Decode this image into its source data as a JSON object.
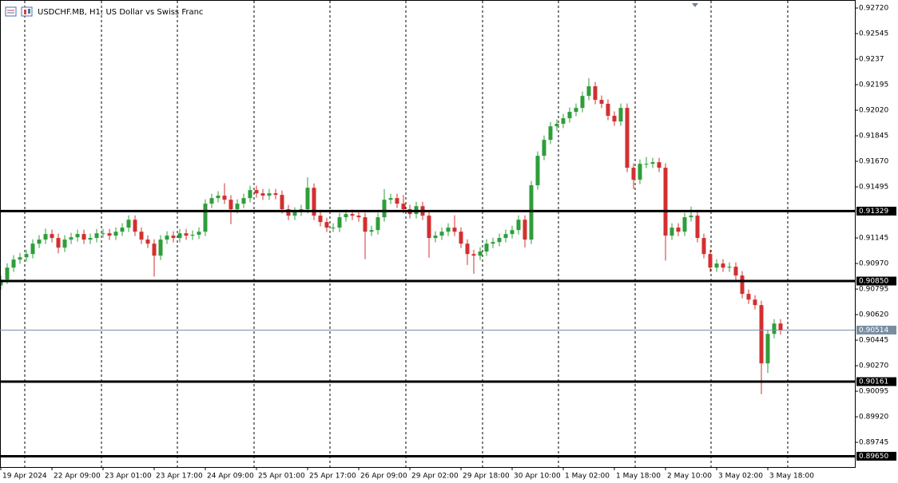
{
  "chart_data": {
    "type": "candlestick",
    "title": "USDCHF.MB, H1:  US Dollar vs Swiss Franc",
    "up_color": "#2e9e3a",
    "down_color": "#d32f2f",
    "xlim": [
      0,
      122
    ],
    "ylim": [
      0.89576,
      0.92775
    ],
    "xticks": [
      {
        "value": 0,
        "label": "19 Apr 2024"
      },
      {
        "value": 8,
        "label": "22 Apr 09:00"
      },
      {
        "value": 16,
        "label": "23 Apr 01:00"
      },
      {
        "value": 24,
        "label": "23 Apr 17:00"
      },
      {
        "value": 32,
        "label": "24 Apr 09:00"
      },
      {
        "value": 40,
        "label": "25 Apr 01:00"
      },
      {
        "value": 48,
        "label": "25 Apr 17:00"
      },
      {
        "value": 56,
        "label": "26 Apr 09:00"
      },
      {
        "value": 64,
        "label": "29 Apr 02:00"
      },
      {
        "value": 72,
        "label": "29 Apr 18:00"
      },
      {
        "value": 80,
        "label": "30 Apr 10:00"
      },
      {
        "value": 88,
        "label": "1 May 02:00"
      },
      {
        "value": 96,
        "label": "1 May 18:00"
      },
      {
        "value": 104,
        "label": "2 May 10:00"
      },
      {
        "value": 112,
        "label": "3 May 02:00"
      },
      {
        "value": 120,
        "label": "3 May 18:00"
      }
    ],
    "yticks": [
      {
        "value": 0.9272,
        "label": "0.92720"
      },
      0.92545,
      0.9237,
      0.92195,
      {
        "value": 0.9202,
        "label": "0.92020"
      },
      0.91845,
      {
        "value": 0.9167,
        "label": "0.91670"
      },
      0.91495,
      0.91145,
      {
        "value": 0.9097,
        "label": "0.90970"
      },
      0.90795,
      {
        "value": 0.9062,
        "label": "0.90620"
      },
      0.90445,
      {
        "value": 0.9027,
        "label": "0.90270"
      },
      0.90095,
      {
        "value": 0.8992,
        "label": "0.89920"
      },
      0.89745
    ],
    "levels": [
      0.91329,
      {
        "value": 0.9085,
        "label": "0.90850"
      },
      0.90161,
      {
        "value": 0.8965,
        "label": "0.89650"
      }
    ],
    "level_color": "#000000",
    "current_price": 0.90514,
    "current_color": "#7a8ea3",
    "open": [
      0.9082,
      0.9086,
      0.90942,
      0.90997,
      0.91013,
      0.91035,
      0.91106,
      0.91134,
      0.91172,
      0.91145,
      0.91079,
      0.91134,
      0.9115,
      0.91172,
      0.91134,
      0.91145,
      0.91177,
      0.91177,
      0.91161,
      0.91188,
      0.91216,
      0.9127,
      0.91188,
      0.91134,
      0.91106,
      0.91024,
      0.91134,
      0.91161,
      0.91145,
      0.91177,
      0.91161,
      0.91167,
      0.91188,
      0.9138,
      0.91418,
      0.91435,
      0.91407,
      0.91342,
      0.9138,
      0.91418,
      0.91473,
      0.91451,
      0.91435,
      0.91451,
      0.9144,
      0.91342,
      0.91298,
      0.91325,
      0.91342,
      0.91489,
      0.91298,
      0.91254,
      0.91216,
      0.91216,
      0.91287,
      0.91309,
      0.91298,
      0.91287,
      0.91188,
      0.91199,
      0.91287,
      0.91407,
      0.91418,
      0.9138,
      0.91342,
      0.91309,
      0.91363,
      0.91298,
      0.91145,
      0.91161,
      0.91188,
      0.91216,
      0.91188,
      0.91106,
      0.91035,
      0.91024,
      0.91052,
      0.91106,
      0.91117,
      0.91145,
      0.91172,
      0.91199,
      0.9127,
      0.91134,
      0.91506,
      0.91708,
      0.91817,
      0.9191,
      0.91927,
      0.91965,
      0.92009,
      0.92036,
      0.92118,
      0.92184,
      0.92091,
      0.92064,
      0.91982,
      0.91943,
      0.92036,
      0.91626,
      0.91544,
      0.91653,
      0.91653,
      0.91664,
      0.91626,
      0.91161,
      0.91216,
      0.91188,
      0.91287,
      0.91298,
      0.91145,
      0.91035,
      0.90942,
      0.9097,
      0.90942,
      0.90948,
      0.90888,
      0.90762,
      0.90723,
      0.90685,
      0.90286,
      0.90488,
      0.90559
    ],
    "high": [
      0.9089,
      0.90972,
      0.91027,
      0.91043,
      0.91065,
      0.91136,
      0.91164,
      0.9121,
      0.91202,
      0.91175,
      0.91164,
      0.9118,
      0.91202,
      0.91202,
      0.91175,
      0.91207,
      0.91207,
      0.91207,
      0.91218,
      0.91246,
      0.913,
      0.913,
      0.91218,
      0.91164,
      0.91136,
      0.91164,
      0.91191,
      0.91191,
      0.91207,
      0.91207,
      0.91197,
      0.91218,
      0.9141,
      0.91448,
      0.91465,
      0.9152,
      0.91437,
      0.9141,
      0.91448,
      0.91503,
      0.91503,
      0.91481,
      0.91481,
      0.91481,
      0.9147,
      0.91372,
      0.91355,
      0.91372,
      0.9156,
      0.91519,
      0.91328,
      0.91284,
      0.91246,
      0.91317,
      0.91339,
      0.91339,
      0.91328,
      0.91317,
      0.91229,
      0.91317,
      0.9148,
      0.91448,
      0.91448,
      0.9144,
      0.91372,
      0.91393,
      0.91393,
      0.91328,
      0.91191,
      0.91218,
      0.91246,
      0.913,
      0.91218,
      0.91136,
      0.91065,
      0.91082,
      0.91136,
      0.91147,
      0.91175,
      0.91202,
      0.91229,
      0.913,
      0.913,
      0.91536,
      0.91738,
      0.91847,
      0.9194,
      0.91957,
      0.91995,
      0.92039,
      0.92066,
      0.92148,
      0.9224,
      0.92214,
      0.92121,
      0.92094,
      0.92012,
      0.92066,
      0.92066,
      0.91656,
      0.91683,
      0.917,
      0.91694,
      0.91694,
      0.91656,
      0.91246,
      0.91246,
      0.91317,
      0.9136,
      0.91328,
      0.91175,
      0.91065,
      0.91,
      0.91,
      0.90978,
      0.90978,
      0.90918,
      0.90792,
      0.90753,
      0.90715,
      0.90518,
      0.90589,
      0.90589
    ],
    "low": [
      0.9079,
      0.9083,
      0.90912,
      0.90967,
      0.90983,
      0.91005,
      0.91076,
      0.91104,
      0.91115,
      0.9104,
      0.91049,
      0.91104,
      0.9112,
      0.91104,
      0.91104,
      0.91115,
      0.91147,
      0.91131,
      0.91131,
      0.91158,
      0.91186,
      0.91158,
      0.91104,
      0.91076,
      0.9088,
      0.90994,
      0.91104,
      0.91115,
      0.91115,
      0.91131,
      0.91131,
      0.91137,
      0.91158,
      0.9135,
      0.91388,
      0.91377,
      0.9124,
      0.91312,
      0.9135,
      0.91388,
      0.91421,
      0.91405,
      0.91405,
      0.9141,
      0.91312,
      0.91268,
      0.91268,
      0.91295,
      0.91312,
      0.91268,
      0.91224,
      0.91186,
      0.91186,
      0.91186,
      0.91257,
      0.91268,
      0.91257,
      0.91,
      0.91158,
      0.91169,
      0.91257,
      0.91377,
      0.9135,
      0.91312,
      0.91279,
      0.91279,
      0.91268,
      0.9101,
      0.91115,
      0.91131,
      0.91158,
      0.91158,
      0.91076,
      0.9096,
      0.909,
      0.90994,
      0.91022,
      0.91076,
      0.91087,
      0.91115,
      0.91142,
      0.91169,
      0.9108,
      0.91104,
      0.91476,
      0.91678,
      0.91787,
      0.9188,
      0.91897,
      0.91935,
      0.91979,
      0.92006,
      0.92088,
      0.92061,
      0.92034,
      0.91952,
      0.91913,
      0.91913,
      0.91596,
      0.9148,
      0.91514,
      0.91623,
      0.91623,
      0.91596,
      0.9099,
      0.91131,
      0.91158,
      0.91158,
      0.91257,
      0.91115,
      0.91005,
      0.90912,
      0.90912,
      0.90912,
      0.90912,
      0.90858,
      0.90732,
      0.90693,
      0.90655,
      0.90075,
      0.9022,
      0.90458,
      0.90484
    ],
    "close": [
      0.9086,
      0.90942,
      0.90997,
      0.91013,
      0.91035,
      0.91106,
      0.91134,
      0.91172,
      0.91145,
      0.91079,
      0.91134,
      0.9115,
      0.91172,
      0.91134,
      0.91145,
      0.91177,
      0.91177,
      0.91161,
      0.91188,
      0.91216,
      0.9127,
      0.91188,
      0.91134,
      0.91106,
      0.91024,
      0.91134,
      0.91161,
      0.91145,
      0.91177,
      0.91161,
      0.91167,
      0.91188,
      0.9138,
      0.91418,
      0.91435,
      0.91407,
      0.91342,
      0.9138,
      0.91418,
      0.91473,
      0.91451,
      0.91435,
      0.91451,
      0.9144,
      0.91342,
      0.91298,
      0.91325,
      0.91342,
      0.91489,
      0.91298,
      0.91254,
      0.91216,
      0.91216,
      0.91287,
      0.91309,
      0.91298,
      0.91287,
      0.91188,
      0.91199,
      0.91287,
      0.91407,
      0.91418,
      0.9138,
      0.91342,
      0.91309,
      0.91363,
      0.91298,
      0.91145,
      0.91161,
      0.91188,
      0.91216,
      0.91188,
      0.91106,
      0.91035,
      0.91024,
      0.91052,
      0.91106,
      0.91117,
      0.91145,
      0.91172,
      0.91199,
      0.9127,
      0.91134,
      0.91506,
      0.91708,
      0.91817,
      0.9191,
      0.91927,
      0.91965,
      0.92009,
      0.92036,
      0.92118,
      0.92184,
      0.92091,
      0.92064,
      0.91982,
      0.91943,
      0.92036,
      0.91626,
      0.91544,
      0.91653,
      0.91653,
      0.91664,
      0.91626,
      0.91161,
      0.91216,
      0.91188,
      0.91287,
      0.91298,
      0.91145,
      0.91035,
      0.90942,
      0.9097,
      0.90942,
      0.90948,
      0.90888,
      0.90762,
      0.90723,
      0.90685,
      0.90286,
      0.90488,
      0.90559,
      0.90514
    ]
  }
}
